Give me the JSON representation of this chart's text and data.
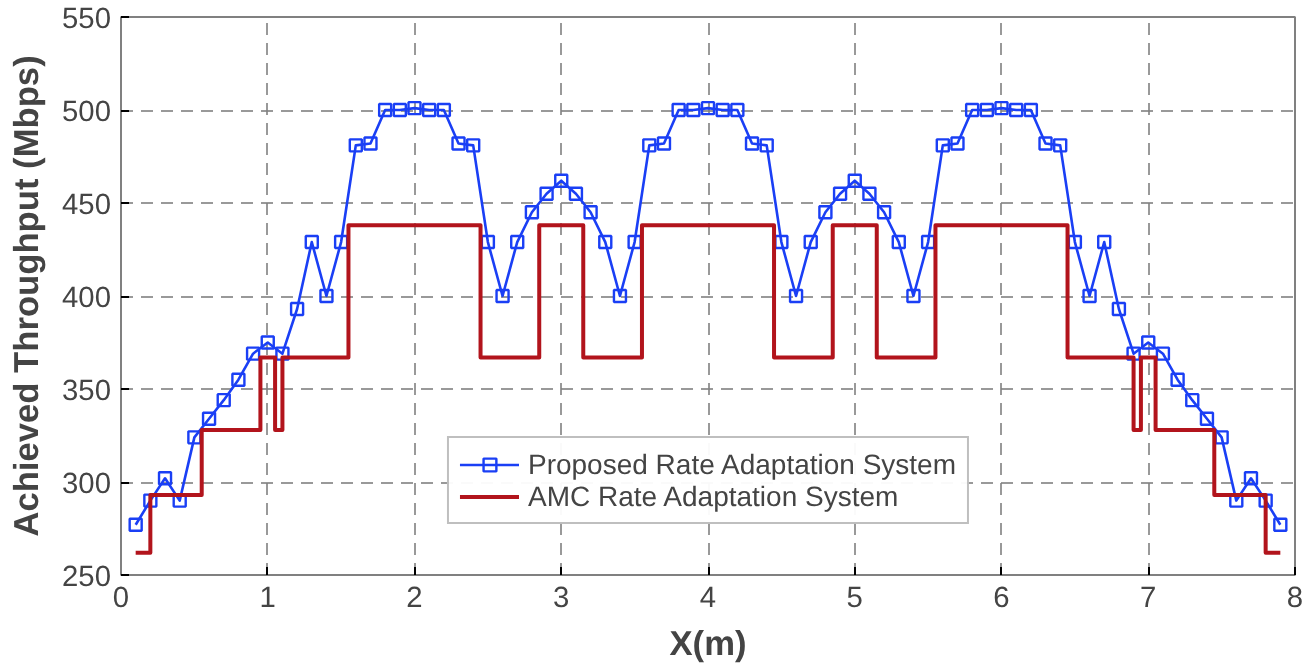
{
  "chart_data": {
    "type": "line",
    "xlabel": "X(m)",
    "ylabel": "Achieved Throughput (Mbps)",
    "xlim": [
      0,
      8
    ],
    "ylim": [
      250,
      550
    ],
    "xticks": [
      0,
      1,
      2,
      3,
      4,
      5,
      6,
      7,
      8
    ],
    "yticks": [
      250,
      300,
      350,
      400,
      450,
      500,
      550
    ],
    "grid": true,
    "legend": "bottom",
    "marker": "square",
    "line_style": "solid",
    "series": [
      {
        "name": "Proposed Rate Adaptation System",
        "color": "#1a3ff5",
        "x": [
          0.1,
          0.2,
          0.3,
          0.4,
          0.5,
          0.6,
          0.7,
          0.8,
          0.9,
          1.0,
          1.1,
          1.2,
          1.3,
          1.4,
          1.5,
          1.6,
          1.7,
          1.8,
          1.9,
          2.0,
          2.1,
          2.2,
          2.3,
          2.4,
          2.5,
          2.6,
          2.7,
          2.8,
          2.9,
          3.0,
          3.1,
          3.2,
          3.3,
          3.4,
          3.5,
          3.6,
          3.7,
          3.8,
          3.9,
          4.0,
          4.1,
          4.2,
          4.3,
          4.4,
          4.5,
          4.6,
          4.7,
          4.8,
          4.9,
          5.0,
          5.1,
          5.2,
          5.3,
          5.4,
          5.5,
          5.6,
          5.7,
          5.8,
          5.9,
          6.0,
          6.1,
          6.2,
          6.3,
          6.4,
          6.5,
          6.6,
          6.7,
          6.8,
          6.9,
          7.0,
          7.1,
          7.2,
          7.3,
          7.4,
          7.5,
          7.6,
          7.7,
          7.8,
          7.9
        ],
        "values": [
          277,
          290,
          302,
          290,
          324,
          334,
          344,
          355,
          369,
          375,
          369,
          393,
          429,
          400,
          429,
          481,
          482,
          500,
          500,
          501,
          500,
          500,
          482,
          481,
          429,
          400,
          429,
          445,
          455,
          462,
          455,
          445,
          429,
          400,
          429,
          481,
          482,
          500,
          500,
          501,
          500,
          500,
          482,
          481,
          429,
          400,
          429,
          445,
          455,
          462,
          455,
          445,
          429,
          400,
          429,
          481,
          482,
          500,
          500,
          501,
          500,
          500,
          482,
          481,
          429,
          400,
          429,
          393,
          369,
          375,
          369,
          355,
          344,
          334,
          324,
          290,
          302,
          290,
          277
        ]
      },
      {
        "name": "AMC Rate Adaptation System",
        "color": "#b2141c",
        "type": "step",
        "marker": "none",
        "x": [
          0.1,
          0.2,
          0.55,
          0.95,
          1.05,
          1.1,
          1.55,
          2.45,
          2.85,
          3.15,
          3.55,
          4.45,
          4.85,
          5.15,
          5.55,
          6.45,
          6.9,
          6.95,
          7.05,
          7.45,
          7.8,
          7.9
        ],
        "values": [
          262,
          293,
          328,
          367,
          328,
          367,
          438,
          367,
          438,
          367,
          438,
          367,
          438,
          367,
          438,
          367,
          328,
          367,
          328,
          293,
          262,
          262
        ]
      }
    ]
  }
}
